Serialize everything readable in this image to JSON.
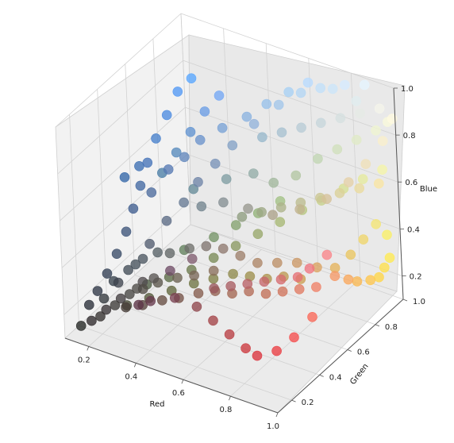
{
  "chart_data": {
    "type": "scatter",
    "projection": "3d",
    "title": "",
    "xlabel": "Red",
    "ylabel": "Green",
    "zlabel": "Blue",
    "xlim": [
      0.1,
      1.0
    ],
    "ylim": [
      0.1,
      1.0
    ],
    "zlim": [
      0.1,
      1.0
    ],
    "xticks": [
      "0.2",
      "0.4",
      "0.6",
      "0.8",
      "1.0"
    ],
    "yticks": [
      "0.2",
      "0.4",
      "0.6",
      "0.8",
      "1.0"
    ],
    "zticks": [
      "0.2",
      "0.4",
      "0.6",
      "0.8",
      "1.0"
    ],
    "grid": true,
    "legend": "none",
    "marker_color_encoding": "each point is colored by its own (Red, Green, Blue) value",
    "points": [
      [
        0.14,
        0.15,
        0.14
      ],
      [
        0.18,
        0.16,
        0.17
      ],
      [
        0.2,
        0.19,
        0.18
      ],
      [
        0.22,
        0.2,
        0.21
      ],
      [
        0.24,
        0.23,
        0.22
      ],
      [
        0.26,
        0.24,
        0.25
      ],
      [
        0.28,
        0.27,
        0.26
      ],
      [
        0.3,
        0.29,
        0.28
      ],
      [
        0.32,
        0.3,
        0.31
      ],
      [
        0.35,
        0.33,
        0.32
      ],
      [
        0.16,
        0.18,
        0.22
      ],
      [
        0.18,
        0.21,
        0.27
      ],
      [
        0.2,
        0.25,
        0.33
      ],
      [
        0.22,
        0.29,
        0.4
      ],
      [
        0.24,
        0.33,
        0.48
      ],
      [
        0.25,
        0.37,
        0.56
      ],
      [
        0.26,
        0.41,
        0.64
      ],
      [
        0.27,
        0.45,
        0.72
      ],
      [
        0.28,
        0.5,
        0.8
      ],
      [
        0.3,
        0.55,
        0.88
      ],
      [
        0.32,
        0.6,
        0.96
      ],
      [
        0.35,
        0.65,
        1.0
      ],
      [
        0.3,
        0.42,
        0.62
      ],
      [
        0.34,
        0.48,
        0.7
      ],
      [
        0.38,
        0.53,
        0.74
      ],
      [
        0.42,
        0.58,
        0.8
      ],
      [
        0.48,
        0.64,
        0.84
      ],
      [
        0.55,
        0.7,
        0.88
      ],
      [
        0.6,
        0.76,
        0.92
      ],
      [
        0.66,
        0.82,
        0.96
      ],
      [
        0.72,
        0.86,
        1.0
      ],
      [
        0.8,
        0.9,
        0.98
      ],
      [
        0.88,
        0.93,
        0.94
      ],
      [
        0.4,
        0.55,
        0.6
      ],
      [
        0.5,
        0.62,
        0.64
      ],
      [
        0.58,
        0.68,
        0.66
      ],
      [
        0.64,
        0.72,
        0.62
      ],
      [
        0.7,
        0.78,
        0.64
      ],
      [
        0.76,
        0.84,
        0.7
      ],
      [
        0.82,
        0.88,
        0.74
      ],
      [
        0.88,
        0.92,
        0.78
      ],
      [
        0.94,
        0.96,
        0.82
      ],
      [
        0.98,
        0.98,
        0.86
      ],
      [
        0.3,
        0.36,
        0.26
      ],
      [
        0.36,
        0.42,
        0.28
      ],
      [
        0.42,
        0.48,
        0.3
      ],
      [
        0.48,
        0.54,
        0.34
      ],
      [
        0.54,
        0.6,
        0.38
      ],
      [
        0.6,
        0.66,
        0.42
      ],
      [
        0.66,
        0.72,
        0.46
      ],
      [
        0.72,
        0.78,
        0.5
      ],
      [
        0.78,
        0.82,
        0.54
      ],
      [
        0.84,
        0.88,
        0.58
      ],
      [
        0.9,
        0.92,
        0.62
      ],
      [
        0.96,
        0.96,
        0.66
      ],
      [
        0.38,
        0.5,
        0.36
      ],
      [
        0.46,
        0.58,
        0.4
      ],
      [
        0.52,
        0.64,
        0.44
      ],
      [
        0.58,
        0.7,
        0.48
      ],
      [
        0.64,
        0.76,
        0.52
      ],
      [
        0.28,
        0.24,
        0.22
      ],
      [
        0.34,
        0.26,
        0.24
      ],
      [
        0.4,
        0.3,
        0.26
      ],
      [
        0.46,
        0.32,
        0.28
      ],
      [
        0.52,
        0.36,
        0.3
      ],
      [
        0.58,
        0.38,
        0.32
      ],
      [
        0.64,
        0.4,
        0.32
      ],
      [
        0.7,
        0.42,
        0.34
      ],
      [
        0.76,
        0.44,
        0.34
      ],
      [
        0.82,
        0.46,
        0.36
      ],
      [
        0.88,
        0.48,
        0.38
      ],
      [
        0.94,
        0.5,
        0.4
      ],
      [
        0.98,
        0.4,
        0.34
      ],
      [
        0.96,
        0.3,
        0.3
      ],
      [
        0.92,
        0.24,
        0.26
      ],
      [
        0.86,
        0.2,
        0.24
      ],
      [
        0.8,
        0.22,
        0.24
      ],
      [
        0.72,
        0.24,
        0.26
      ],
      [
        0.64,
        0.26,
        0.28
      ],
      [
        0.56,
        0.28,
        0.3
      ],
      [
        0.48,
        0.26,
        0.32
      ],
      [
        0.4,
        0.22,
        0.3
      ],
      [
        0.36,
        0.2,
        0.28
      ],
      [
        0.44,
        0.3,
        0.4
      ],
      [
        0.5,
        0.36,
        0.44
      ],
      [
        0.96,
        0.6,
        0.4
      ],
      [
        0.98,
        0.66,
        0.36
      ],
      [
        0.98,
        0.72,
        0.32
      ],
      [
        1.0,
        0.78,
        0.3
      ],
      [
        1.0,
        0.84,
        0.28
      ],
      [
        1.0,
        0.88,
        0.3
      ],
      [
        1.0,
        0.92,
        0.32
      ],
      [
        0.98,
        0.94,
        0.4
      ],
      [
        0.96,
        0.9,
        0.46
      ],
      [
        0.94,
        0.84,
        0.42
      ],
      [
        0.92,
        0.78,
        0.38
      ],
      [
        0.9,
        0.7,
        0.36
      ],
      [
        0.86,
        0.64,
        0.38
      ],
      [
        0.8,
        0.6,
        0.4
      ],
      [
        0.74,
        0.56,
        0.4
      ],
      [
        0.68,
        0.52,
        0.4
      ],
      [
        0.62,
        0.5,
        0.42
      ],
      [
        0.56,
        0.48,
        0.44
      ],
      [
        0.5,
        0.46,
        0.44
      ],
      [
        0.44,
        0.44,
        0.42
      ],
      [
        0.38,
        0.4,
        0.4
      ],
      [
        0.34,
        0.38,
        0.4
      ],
      [
        0.3,
        0.34,
        0.38
      ],
      [
        0.26,
        0.3,
        0.34
      ],
      [
        0.22,
        0.26,
        0.3
      ],
      [
        0.45,
        0.52,
        0.56
      ],
      [
        0.52,
        0.56,
        0.58
      ],
      [
        0.6,
        0.6,
        0.56
      ],
      [
        0.68,
        0.64,
        0.54
      ],
      [
        0.76,
        0.7,
        0.56
      ],
      [
        0.84,
        0.76,
        0.6
      ],
      [
        0.9,
        0.82,
        0.66
      ],
      [
        0.94,
        0.88,
        0.72
      ],
      [
        0.98,
        0.94,
        0.8
      ],
      [
        1.0,
        0.98,
        0.88
      ],
      [
        0.2,
        0.22,
        0.24
      ],
      [
        0.24,
        0.26,
        0.3
      ],
      [
        0.28,
        0.32,
        0.36
      ],
      [
        0.32,
        0.36,
        0.44
      ],
      [
        0.36,
        0.42,
        0.52
      ],
      [
        0.4,
        0.48,
        0.58
      ],
      [
        0.44,
        0.52,
        0.66
      ],
      [
        0.48,
        0.58,
        0.72
      ],
      [
        0.52,
        0.64,
        0.78
      ],
      [
        0.58,
        0.7,
        0.86
      ],
      [
        0.64,
        0.78,
        0.92
      ],
      [
        0.7,
        0.84,
        0.96
      ],
      [
        0.76,
        0.88,
        0.98
      ],
      [
        0.84,
        0.92,
        1.0
      ],
      [
        0.9,
        0.96,
        1.0
      ],
      [
        0.26,
        0.28,
        0.2
      ],
      [
        0.32,
        0.34,
        0.22
      ],
      [
        0.38,
        0.4,
        0.24
      ],
      [
        0.44,
        0.46,
        0.26
      ],
      [
        0.5,
        0.5,
        0.28
      ],
      [
        0.56,
        0.54,
        0.3
      ],
      [
        0.62,
        0.56,
        0.3
      ],
      [
        0.68,
        0.58,
        0.3
      ],
      [
        0.74,
        0.6,
        0.32
      ],
      [
        0.8,
        0.62,
        0.32
      ],
      [
        0.6,
        0.34,
        0.36
      ],
      [
        0.66,
        0.36,
        0.38
      ],
      [
        0.72,
        0.38,
        0.4
      ],
      [
        0.78,
        0.4,
        0.42
      ],
      [
        0.84,
        0.42,
        0.44
      ],
      [
        0.9,
        0.44,
        0.46
      ],
      [
        0.94,
        0.46,
        0.5
      ],
      [
        0.98,
        0.52,
        0.54
      ],
      [
        0.54,
        0.44,
        0.36
      ],
      [
        0.48,
        0.4,
        0.34
      ],
      [
        0.42,
        0.38,
        0.32
      ],
      [
        0.36,
        0.34,
        0.3
      ],
      [
        0.32,
        0.3,
        0.28
      ],
      [
        0.6,
        0.72,
        0.8
      ],
      [
        0.66,
        0.76,
        0.82
      ],
      [
        0.72,
        0.8,
        0.84
      ],
      [
        0.78,
        0.84,
        0.86
      ],
      [
        0.84,
        0.88,
        0.88
      ],
      [
        0.9,
        0.92,
        0.9
      ],
      [
        0.96,
        0.96,
        0.92
      ],
      [
        0.56,
        0.62,
        0.5
      ],
      [
        0.62,
        0.66,
        0.52
      ],
      [
        0.68,
        0.7,
        0.54
      ],
      [
        0.74,
        0.74,
        0.56
      ],
      [
        0.8,
        0.78,
        0.58
      ],
      [
        0.86,
        0.82,
        0.6
      ],
      [
        0.92,
        0.86,
        0.62
      ],
      [
        0.98,
        0.9,
        0.64
      ],
      [
        0.3,
        0.5,
        0.66
      ],
      [
        0.34,
        0.54,
        0.74
      ],
      [
        0.38,
        0.58,
        0.82
      ],
      [
        0.42,
        0.62,
        0.9
      ],
      [
        0.46,
        0.66,
        0.96
      ],
      [
        0.24,
        0.44,
        0.7
      ],
      [
        0.2,
        0.4,
        0.66
      ]
    ]
  }
}
